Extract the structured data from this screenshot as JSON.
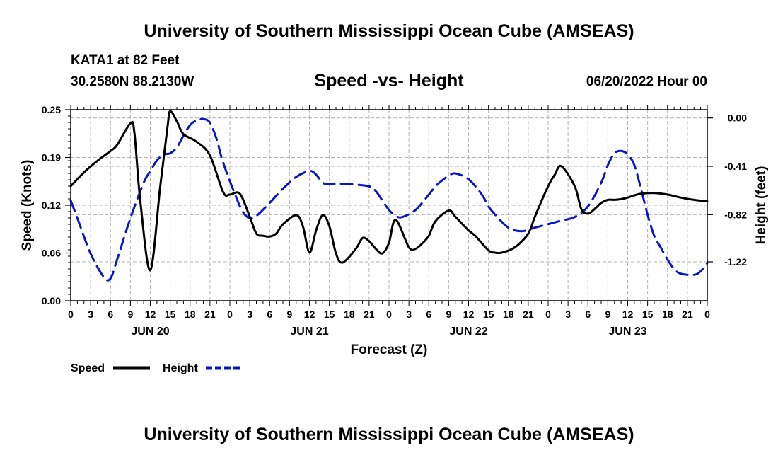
{
  "header": {
    "title": "University of Southern Mississippi Ocean Cube (AMSEAS)",
    "station": "KATA1 at 82 Feet",
    "coords": "30.2580N  88.2130W",
    "subtitle": "Speed -vs- Height",
    "datetime": "06/20/2022 Hour 00"
  },
  "footer": {
    "title": "University of Southern Mississippi Ocean Cube (AMSEAS)"
  },
  "colors": {
    "speed": "#000000",
    "height": "#0a14c8",
    "grid": "#b4b4b4"
  },
  "chart_data": {
    "type": "line",
    "xlabel": "Forecast (Z)",
    "ylabel": "Speed (Knots)",
    "y2label": "Height (feet)",
    "xlim": [
      0,
      96
    ],
    "ylim": [
      0,
      0.25
    ],
    "y2lim": [
      -1.55,
      0.07
    ],
    "yticks": [
      "0.00",
      "0.06",
      "0.12",
      "0.19",
      "0.25"
    ],
    "y2ticks": [
      {
        "label": "0.00",
        "value": 0.0
      },
      {
        "label": "-0.41",
        "value": -0.41
      },
      {
        "label": "-0.82",
        "value": -0.82
      },
      {
        "label": "-1.22",
        "value": -1.22
      }
    ],
    "xticks": [
      "0",
      "3",
      "6",
      "9",
      "12",
      "15",
      "18",
      "21",
      "0",
      "3",
      "6",
      "9",
      "12",
      "15",
      "18",
      "21",
      "0",
      "3",
      "6",
      "9",
      "12",
      "15",
      "18",
      "21",
      "0",
      "3",
      "6",
      "9",
      "12",
      "15",
      "18",
      "21",
      "0"
    ],
    "days": [
      {
        "label": "JUN 20",
        "hour": 12
      },
      {
        "label": "JUN 21",
        "hour": 36
      },
      {
        "label": "JUN 22",
        "hour": 60
      },
      {
        "label": "JUN 23",
        "hour": 84
      }
    ],
    "legend": [
      {
        "name": "Speed",
        "style": "solid"
      },
      {
        "name": "Height",
        "style": "dashed"
      }
    ],
    "series": [
      {
        "name": "Speed",
        "axis": "left",
        "x": [
          0,
          2,
          4,
          6,
          7,
          9,
          9.6,
          10.5,
          12,
          13.5,
          14.6,
          15,
          16,
          17,
          19,
          21,
          23,
          24,
          25.5,
          27,
          28,
          29,
          30,
          31,
          32,
          34,
          35,
          36,
          37,
          38,
          39,
          40,
          41,
          43,
          44,
          45,
          46,
          47,
          48,
          49,
          51,
          52,
          53,
          54,
          55,
          57,
          58,
          60,
          61,
          63,
          64,
          65,
          67,
          69,
          70,
          72,
          73,
          74,
          76,
          77,
          78,
          79,
          80,
          81,
          82,
          83,
          84,
          85,
          86,
          88,
          90,
          92,
          94,
          96
        ],
        "values": [
          0.15,
          0.168,
          0.183,
          0.196,
          0.204,
          0.232,
          0.22,
          0.13,
          0.04,
          0.15,
          0.228,
          0.248,
          0.235,
          0.218,
          0.208,
          0.19,
          0.142,
          0.139,
          0.14,
          0.11,
          0.088,
          0.085,
          0.084,
          0.088,
          0.1,
          0.112,
          0.098,
          0.063,
          0.092,
          0.112,
          0.098,
          0.062,
          0.05,
          0.068,
          0.082,
          0.078,
          0.068,
          0.062,
          0.076,
          0.106,
          0.07,
          0.068,
          0.075,
          0.085,
          0.104,
          0.118,
          0.11,
          0.092,
          0.085,
          0.066,
          0.063,
          0.063,
          0.07,
          0.088,
          0.11,
          0.15,
          0.165,
          0.176,
          0.15,
          0.12,
          0.114,
          0.12,
          0.128,
          0.132,
          0.132,
          0.133,
          0.135,
          0.138,
          0.14,
          0.141,
          0.139,
          0.135,
          0.132,
          0.13
        ]
      },
      {
        "name": "Height",
        "axis": "right",
        "x": [
          0,
          1,
          3,
          5,
          6,
          7,
          9,
          11,
          12,
          13,
          14,
          15,
          16,
          17,
          18,
          19,
          20,
          21,
          22,
          23,
          25,
          26,
          27,
          28,
          30,
          32,
          34,
          36,
          37,
          38,
          39,
          40,
          42,
          45,
          46,
          47,
          48,
          49,
          50,
          52,
          54,
          55,
          56,
          57,
          58,
          60,
          62,
          63,
          64,
          66,
          68,
          70,
          72,
          74,
          76,
          78,
          80,
          81,
          82,
          83,
          84,
          85,
          86,
          87,
          88,
          89,
          90,
          91,
          92,
          94,
          95,
          96
        ],
        "values": [
          -0.7,
          -0.85,
          -1.15,
          -1.35,
          -1.36,
          -1.2,
          -0.85,
          -0.55,
          -0.45,
          -0.36,
          -0.31,
          -0.3,
          -0.25,
          -0.15,
          -0.06,
          -0.02,
          -0.01,
          -0.04,
          -0.18,
          -0.38,
          -0.68,
          -0.8,
          -0.85,
          -0.83,
          -0.72,
          -0.6,
          -0.5,
          -0.45,
          -0.48,
          -0.55,
          -0.56,
          -0.56,
          -0.56,
          -0.58,
          -0.62,
          -0.7,
          -0.78,
          -0.83,
          -0.84,
          -0.78,
          -0.65,
          -0.58,
          -0.53,
          -0.49,
          -0.47,
          -0.52,
          -0.65,
          -0.75,
          -0.82,
          -0.93,
          -0.96,
          -0.93,
          -0.9,
          -0.87,
          -0.84,
          -0.75,
          -0.55,
          -0.4,
          -0.3,
          -0.28,
          -0.31,
          -0.4,
          -0.6,
          -0.82,
          -1.0,
          -1.1,
          -1.2,
          -1.28,
          -1.32,
          -1.33,
          -1.3,
          -1.23
        ]
      }
    ]
  }
}
